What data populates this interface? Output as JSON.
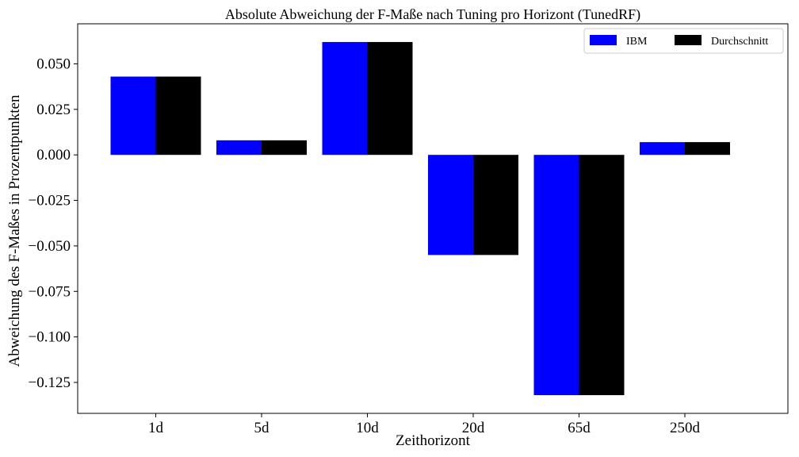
{
  "chart_data": {
    "type": "bar",
    "title": "Absolute Abweichung der F-Maße nach Tuning pro Horizont (TunedRF)",
    "xlabel": "Zeithorizont",
    "ylabel": "Abweichung des F-Maßes in Prozentpunkten",
    "categories": [
      "1d",
      "5d",
      "10d",
      "20d",
      "65d",
      "250d"
    ],
    "series": [
      {
        "name": "IBM",
        "color": "#0000ff",
        "values": [
          0.043,
          0.008,
          0.062,
          -0.055,
          -0.132,
          0.007
        ]
      },
      {
        "name": "Durchschnitt",
        "color": "#000000",
        "values": [
          0.043,
          0.008,
          0.062,
          -0.055,
          -0.132,
          0.007
        ]
      }
    ],
    "ylim": [
      -0.142,
      0.072
    ],
    "yticks": [
      {
        "value": 0.05,
        "label": "0.050"
      },
      {
        "value": 0.025,
        "label": "0.025"
      },
      {
        "value": 0.0,
        "label": "0.000"
      },
      {
        "value": -0.025,
        "label": "−0.025"
      },
      {
        "value": -0.05,
        "label": "−0.050"
      },
      {
        "value": -0.075,
        "label": "−0.075"
      },
      {
        "value": -0.1,
        "label": "−0.100"
      },
      {
        "value": -0.125,
        "label": "−0.125"
      }
    ],
    "grid": false,
    "legend_position": "top-right"
  }
}
